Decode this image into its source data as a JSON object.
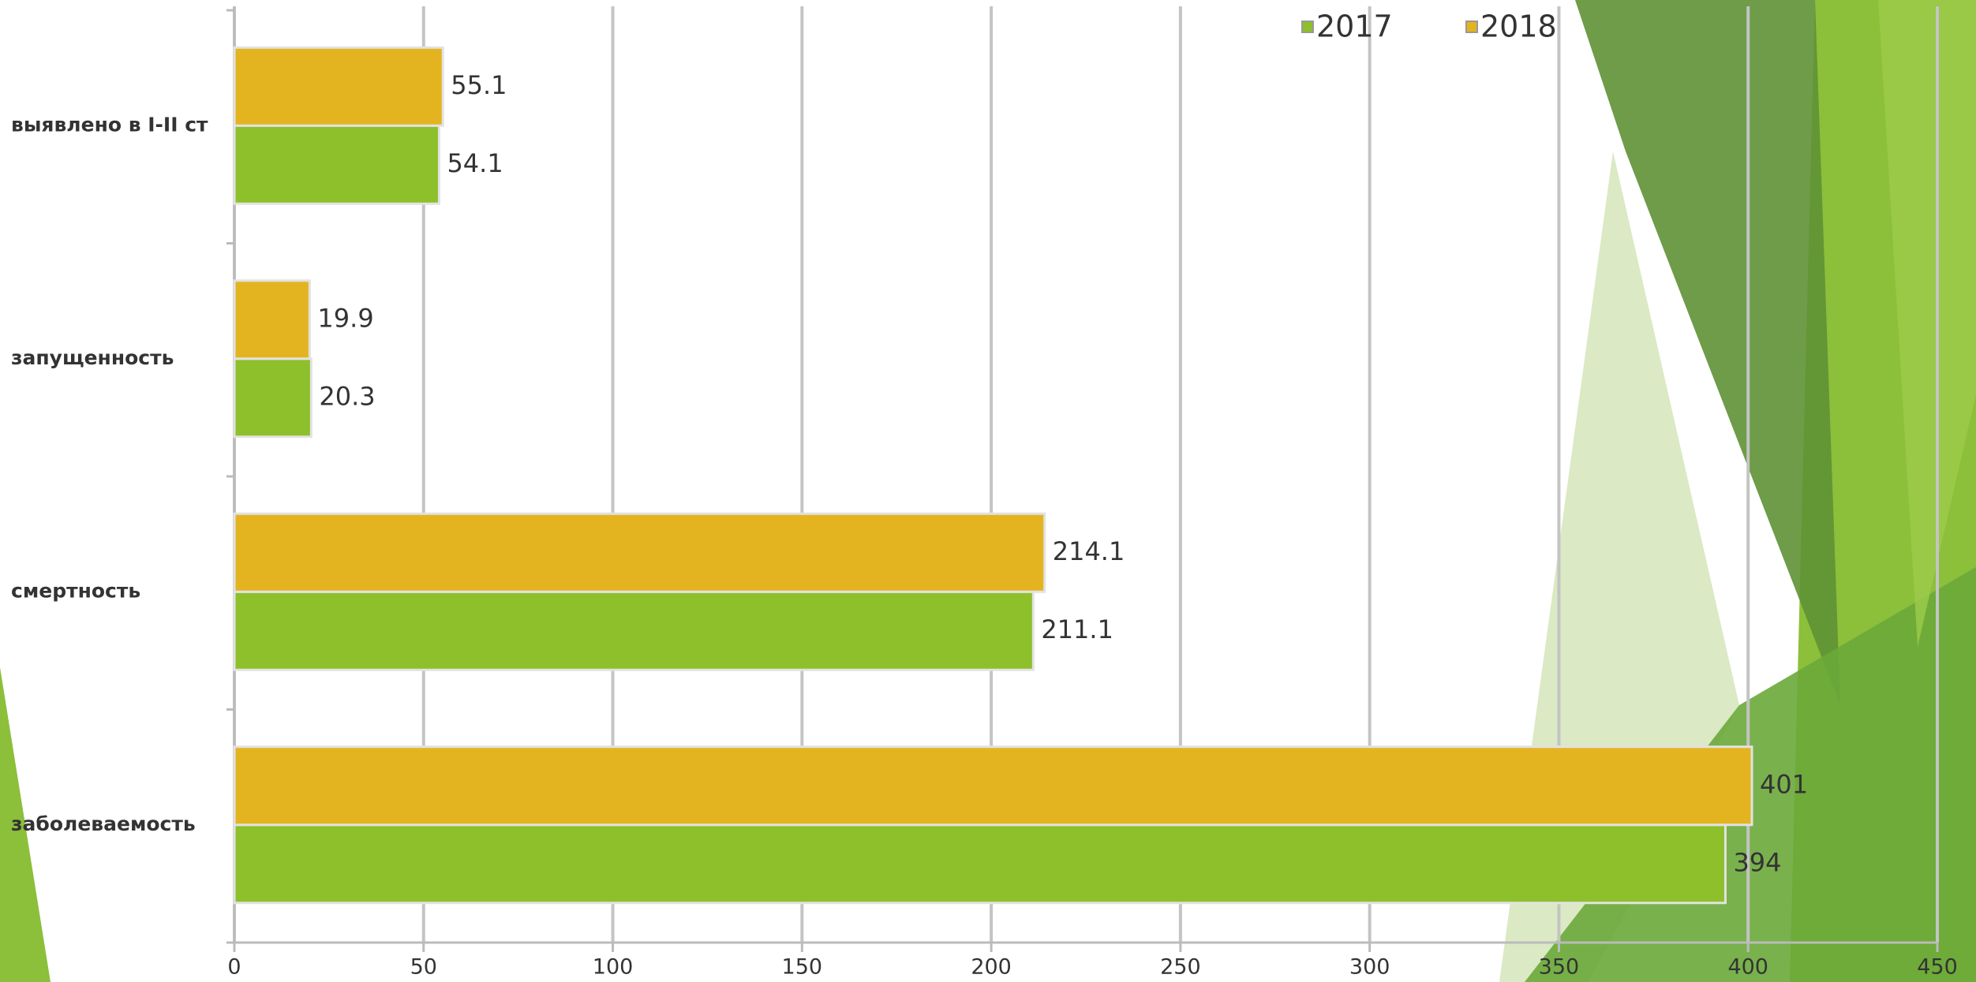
{
  "chart_data": {
    "type": "hbar",
    "categories": [
      "выявлено в I-II ст",
      "запущенность",
      "смертность",
      "заболеваемость"
    ],
    "series": [
      {
        "name": "2017",
        "color": "#8dc02a",
        "values": [
          54.1,
          20.3,
          211.1,
          394
        ]
      },
      {
        "name": "2018",
        "color": "#e4b420",
        "values": [
          55.1,
          19.9,
          214.1,
          401
        ]
      }
    ],
    "xlim": [
      0,
      450
    ],
    "xticks": [
      0,
      50,
      100,
      150,
      200,
      250,
      300,
      350,
      400,
      450
    ],
    "grid": true,
    "legend": "top-right"
  }
}
